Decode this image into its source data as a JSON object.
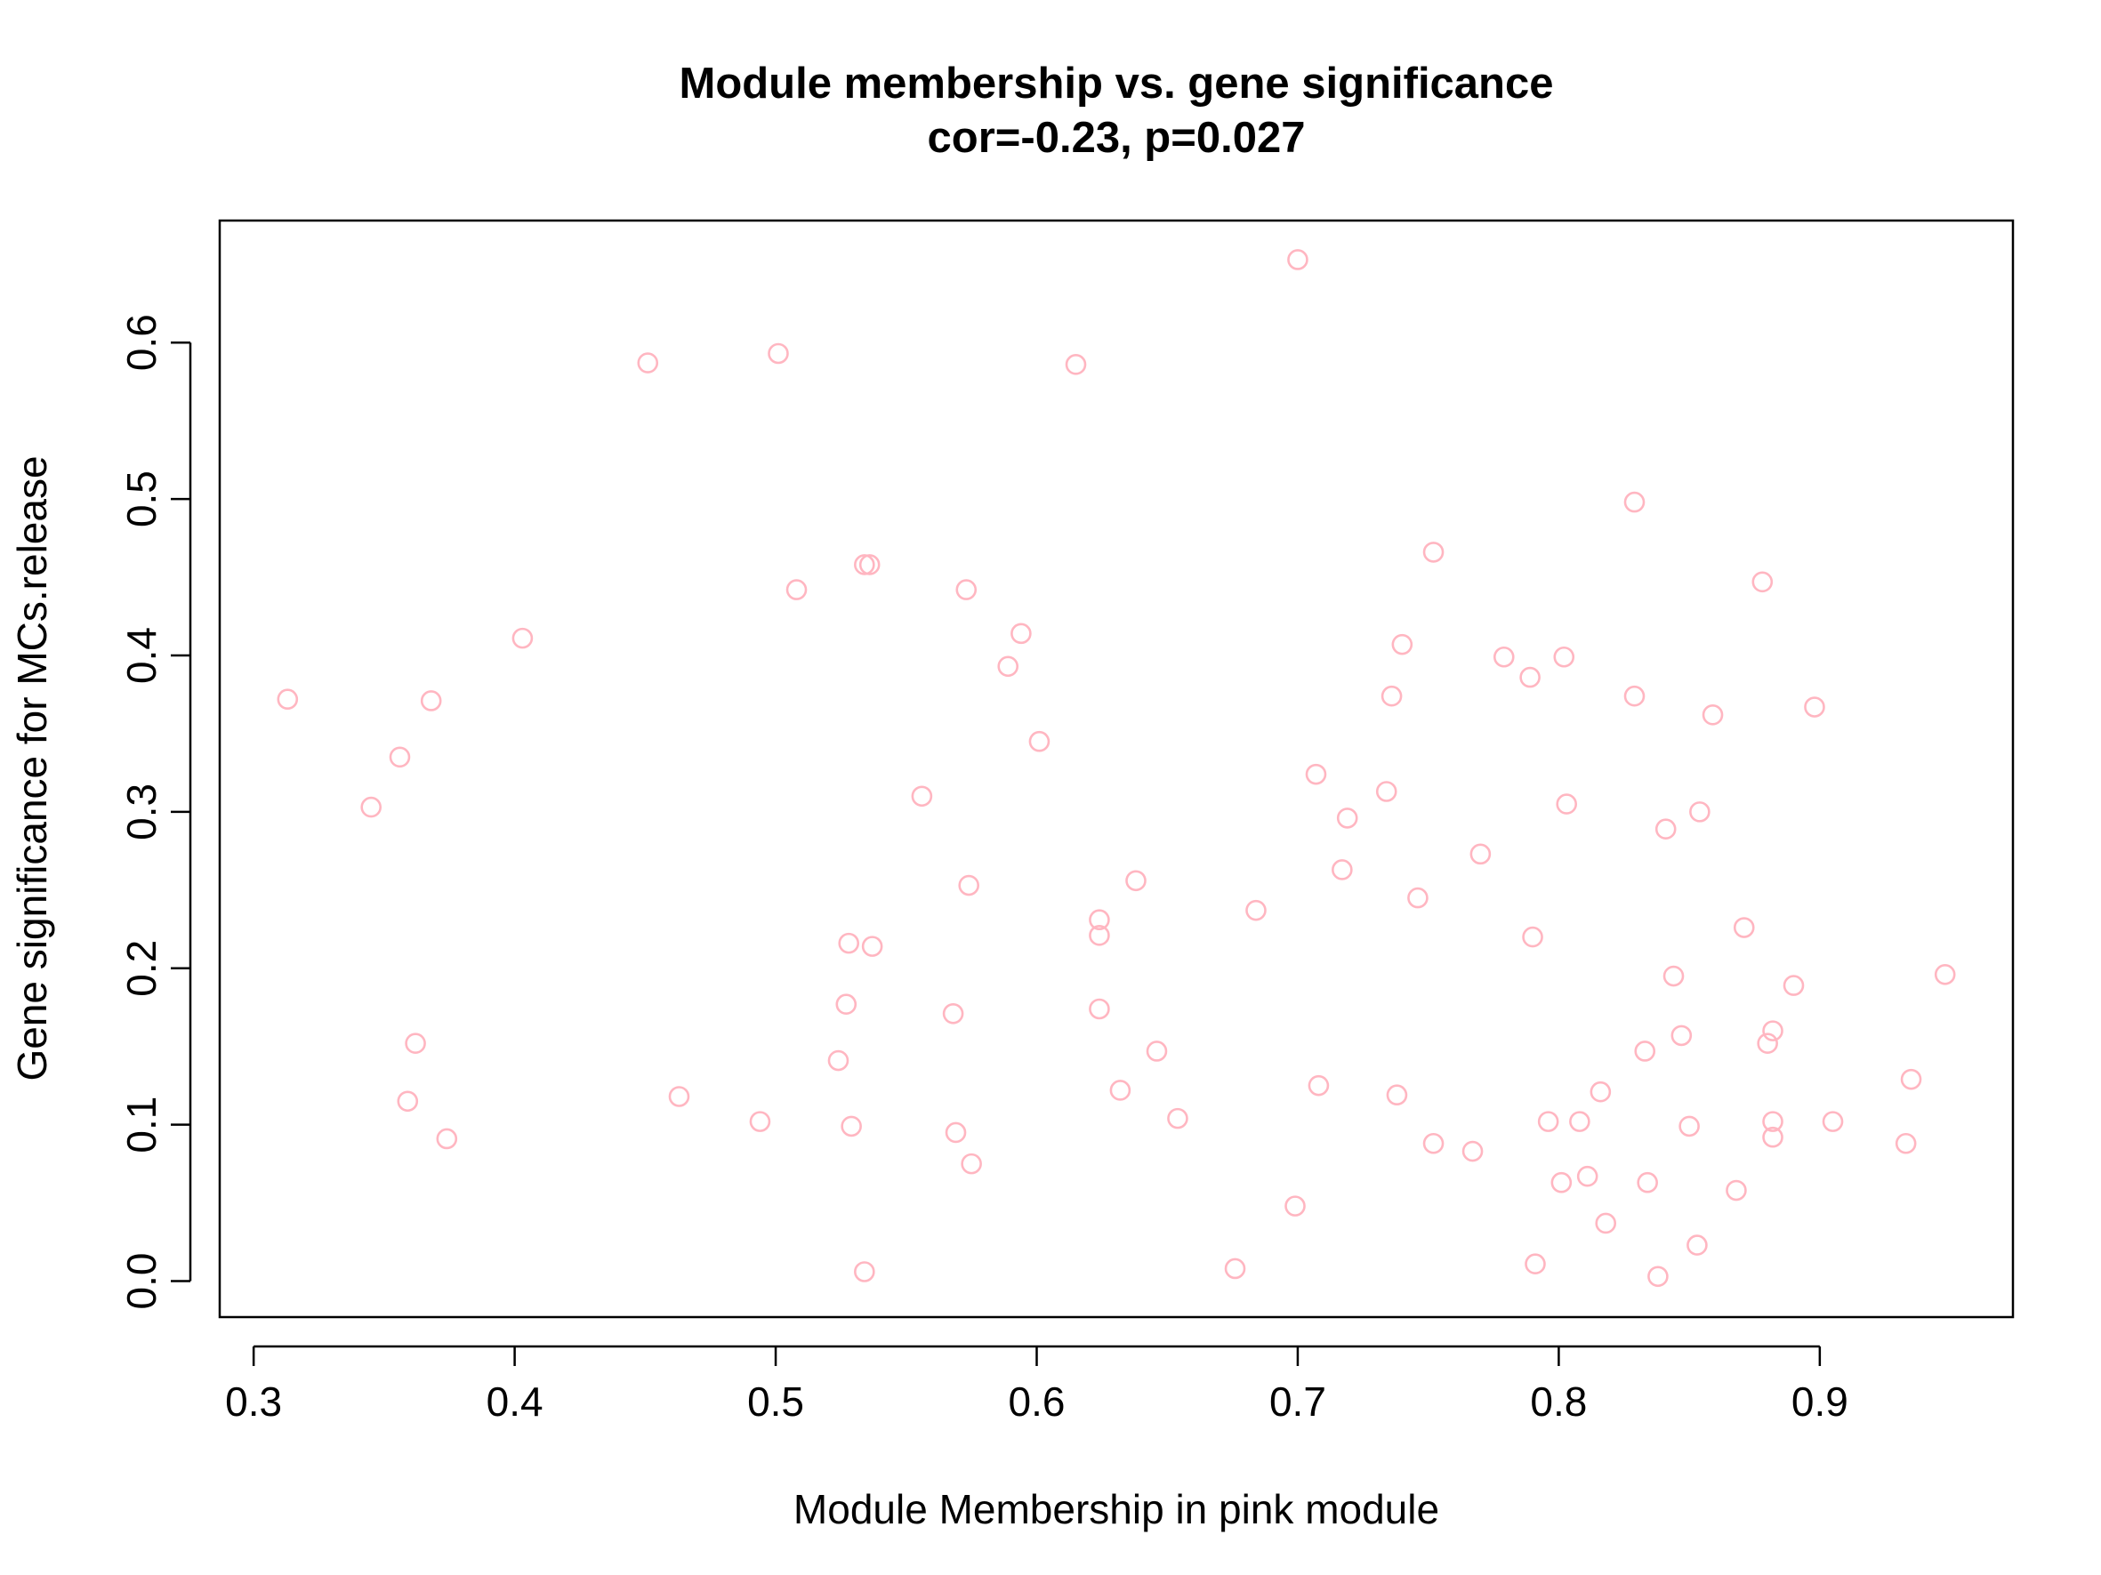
{
  "chart_data": {
    "type": "scatter",
    "title": "Module membership vs. gene significance",
    "subtitle": "cor=-0.23, p=0.027",
    "xlabel": "Module Membership in pink module",
    "ylabel": "Gene significance for MCs.release",
    "xlim": [
      0.287,
      0.974
    ],
    "ylim": [
      -0.023,
      0.678
    ],
    "xticks": [
      0.3,
      0.4,
      0.5,
      0.6,
      0.7,
      0.8,
      0.9
    ],
    "xtick_labels": [
      "0.3",
      "0.4",
      "0.5",
      "0.6",
      "0.7",
      "0.8",
      "0.9"
    ],
    "yticks": [
      0.0,
      0.1,
      0.2,
      0.3,
      0.4,
      0.5,
      0.6
    ],
    "ytick_labels": [
      "0.0",
      "0.1",
      "0.2",
      "0.3",
      "0.4",
      "0.5",
      "0.6"
    ],
    "grid": false,
    "point_color": "#FFB6C1",
    "marker": "open-circle",
    "points": [
      [
        0.313,
        0.372
      ],
      [
        0.345,
        0.303
      ],
      [
        0.356,
        0.335
      ],
      [
        0.359,
        0.115
      ],
      [
        0.362,
        0.152
      ],
      [
        0.368,
        0.371
      ],
      [
        0.374,
        0.091
      ],
      [
        0.403,
        0.411
      ],
      [
        0.451,
        0.587
      ],
      [
        0.463,
        0.118
      ],
      [
        0.494,
        0.102
      ],
      [
        0.501,
        0.593
      ],
      [
        0.508,
        0.442
      ],
      [
        0.524,
        0.141
      ],
      [
        0.527,
        0.177
      ],
      [
        0.528,
        0.216
      ],
      [
        0.529,
        0.099
      ],
      [
        0.534,
        0.006
      ],
      [
        0.534,
        0.458
      ],
      [
        0.536,
        0.458
      ],
      [
        0.537,
        0.214
      ],
      [
        0.556,
        0.31
      ],
      [
        0.568,
        0.171
      ],
      [
        0.569,
        0.095
      ],
      [
        0.573,
        0.442
      ],
      [
        0.574,
        0.253
      ],
      [
        0.575,
        0.075
      ],
      [
        0.589,
        0.393
      ],
      [
        0.594,
        0.414
      ],
      [
        0.601,
        0.345
      ],
      [
        0.615,
        0.586
      ],
      [
        0.624,
        0.231
      ],
      [
        0.624,
        0.221
      ],
      [
        0.624,
        0.174
      ],
      [
        0.632,
        0.122
      ],
      [
        0.638,
        0.256
      ],
      [
        0.646,
        0.147
      ],
      [
        0.654,
        0.104
      ],
      [
        0.676,
        0.008
      ],
      [
        0.684,
        0.237
      ],
      [
        0.699,
        0.048
      ],
      [
        0.7,
        0.653
      ],
      [
        0.707,
        0.324
      ],
      [
        0.708,
        0.125
      ],
      [
        0.717,
        0.263
      ],
      [
        0.719,
        0.296
      ],
      [
        0.734,
        0.313
      ],
      [
        0.736,
        0.374
      ],
      [
        0.738,
        0.119
      ],
      [
        0.74,
        0.407
      ],
      [
        0.746,
        0.245
      ],
      [
        0.752,
        0.088
      ],
      [
        0.752,
        0.466
      ],
      [
        0.767,
        0.083
      ],
      [
        0.77,
        0.273
      ],
      [
        0.779,
        0.399
      ],
      [
        0.789,
        0.386
      ],
      [
        0.79,
        0.22
      ],
      [
        0.791,
        0.011
      ],
      [
        0.796,
        0.102
      ],
      [
        0.801,
        0.063
      ],
      [
        0.802,
        0.399
      ],
      [
        0.803,
        0.305
      ],
      [
        0.808,
        0.102
      ],
      [
        0.811,
        0.067
      ],
      [
        0.816,
        0.121
      ],
      [
        0.818,
        0.037
      ],
      [
        0.829,
        0.498
      ],
      [
        0.829,
        0.374
      ],
      [
        0.833,
        0.147
      ],
      [
        0.834,
        0.063
      ],
      [
        0.838,
        0.003
      ],
      [
        0.841,
        0.289
      ],
      [
        0.844,
        0.195
      ],
      [
        0.847,
        0.157
      ],
      [
        0.85,
        0.099
      ],
      [
        0.853,
        0.023
      ],
      [
        0.854,
        0.3
      ],
      [
        0.859,
        0.362
      ],
      [
        0.868,
        0.058
      ],
      [
        0.871,
        0.226
      ],
      [
        0.878,
        0.447
      ],
      [
        0.88,
        0.152
      ],
      [
        0.882,
        0.16
      ],
      [
        0.882,
        0.102
      ],
      [
        0.882,
        0.092
      ],
      [
        0.89,
        0.189
      ],
      [
        0.898,
        0.367
      ],
      [
        0.905,
        0.102
      ],
      [
        0.933,
        0.088
      ],
      [
        0.935,
        0.129
      ],
      [
        0.948,
        0.196
      ]
    ]
  }
}
